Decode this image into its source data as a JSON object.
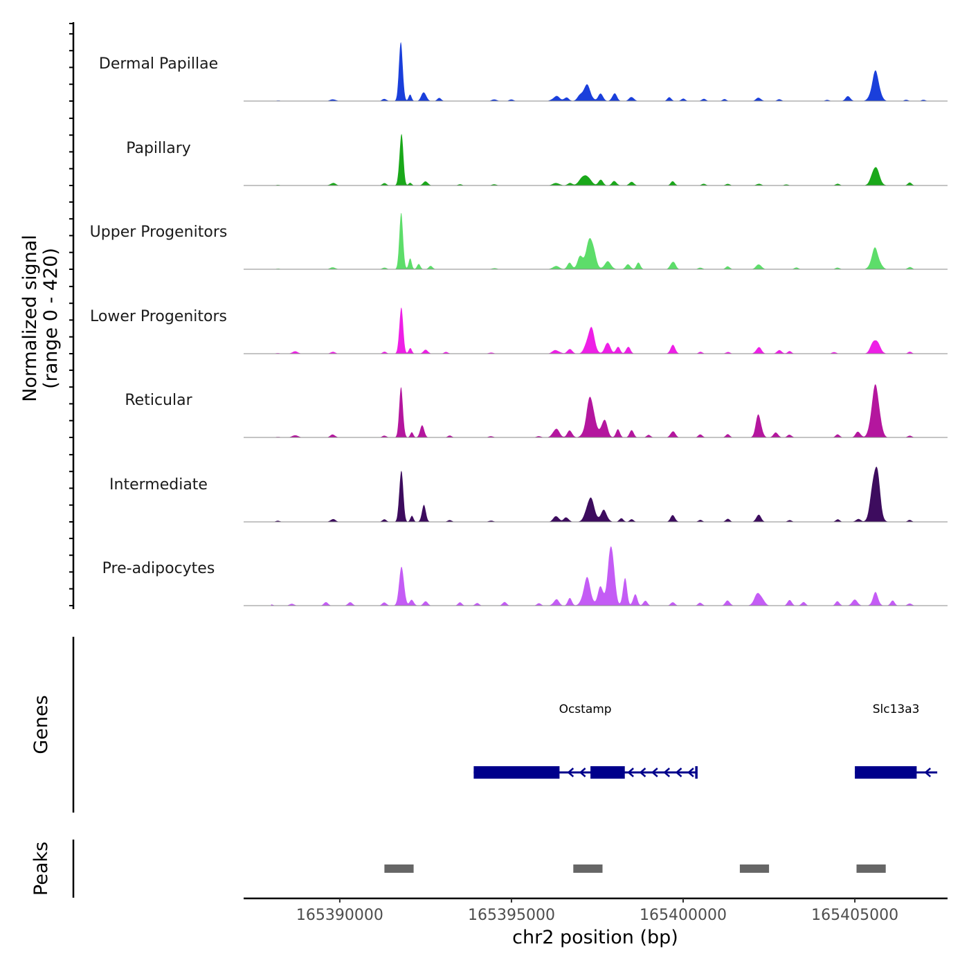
{
  "chart_data": {
    "type": "area",
    "title": "",
    "ylabel_line1": "Normalized signal",
    "ylabel_line2": "(range 0 - 420)",
    "y_range": [
      0,
      420
    ],
    "xlabel": "chr2 position (bp)",
    "xlim": [
      165387200,
      165407700
    ],
    "xticks": [
      165390000,
      165395000,
      165400000,
      165405000
    ],
    "xtick_labels": [
      "165390000",
      "165395000",
      "165400000",
      "165405000"
    ],
    "series": [
      {
        "name": "Dermal Papillae",
        "color": "#1a3fdb",
        "peaks": [
          [
            165388200,
            0.01,
            60
          ],
          [
            165389800,
            0.03,
            80
          ],
          [
            165391300,
            0.04,
            60
          ],
          [
            165391780,
            1.0,
            55
          ],
          [
            165392050,
            0.1,
            45
          ],
          [
            165392450,
            0.15,
            70
          ],
          [
            165392900,
            0.05,
            60
          ],
          [
            165394500,
            0.03,
            70
          ],
          [
            165395000,
            0.03,
            60
          ],
          [
            165396300,
            0.08,
            100
          ],
          [
            165396600,
            0.06,
            70
          ],
          [
            165397000,
            0.08,
            80
          ],
          [
            165397200,
            0.24,
            110
          ],
          [
            165397600,
            0.12,
            70
          ],
          [
            165398000,
            0.12,
            70
          ],
          [
            165398500,
            0.07,
            70
          ],
          [
            165399600,
            0.06,
            60
          ],
          [
            165400000,
            0.04,
            60
          ],
          [
            165400600,
            0.04,
            60
          ],
          [
            165401200,
            0.03,
            60
          ],
          [
            165402200,
            0.06,
            70
          ],
          [
            165402800,
            0.03,
            60
          ],
          [
            165404200,
            0.02,
            60
          ],
          [
            165404800,
            0.08,
            70
          ],
          [
            165405600,
            0.46,
            110
          ],
          [
            165406500,
            0.02,
            60
          ],
          [
            165407000,
            0.02,
            60
          ]
        ]
      },
      {
        "name": "Papillary",
        "color": "#1aa81a",
        "peaks": [
          [
            165388200,
            0.01,
            60
          ],
          [
            165389800,
            0.04,
            80
          ],
          [
            165391300,
            0.04,
            60
          ],
          [
            165391790,
            0.88,
            55
          ],
          [
            165392050,
            0.05,
            45
          ],
          [
            165392500,
            0.07,
            70
          ],
          [
            165393500,
            0.02,
            60
          ],
          [
            165394500,
            0.02,
            70
          ],
          [
            165396300,
            0.04,
            100
          ],
          [
            165396700,
            0.04,
            70
          ],
          [
            165397000,
            0.08,
            80
          ],
          [
            165397200,
            0.16,
            110
          ],
          [
            165397600,
            0.09,
            70
          ],
          [
            165398000,
            0.07,
            70
          ],
          [
            165398500,
            0.06,
            70
          ],
          [
            165399700,
            0.07,
            60
          ],
          [
            165400600,
            0.03,
            60
          ],
          [
            165401300,
            0.03,
            60
          ],
          [
            165402200,
            0.03,
            70
          ],
          [
            165403000,
            0.02,
            60
          ],
          [
            165404500,
            0.03,
            60
          ],
          [
            165405600,
            0.3,
            110
          ],
          [
            165406600,
            0.05,
            60
          ]
        ]
      },
      {
        "name": "Upper Progenitors",
        "color": "#5ddd6a",
        "peaks": [
          [
            165388200,
            0.01,
            60
          ],
          [
            165389800,
            0.03,
            80
          ],
          [
            165391300,
            0.03,
            60
          ],
          [
            165391790,
            0.85,
            55
          ],
          [
            165392050,
            0.18,
            45
          ],
          [
            165392300,
            0.08,
            50
          ],
          [
            165392650,
            0.05,
            60
          ],
          [
            165394500,
            0.02,
            70
          ],
          [
            165396300,
            0.05,
            100
          ],
          [
            165396700,
            0.1,
            70
          ],
          [
            165397000,
            0.2,
            80
          ],
          [
            165397300,
            0.55,
            110
          ],
          [
            165397800,
            0.12,
            100
          ],
          [
            165398400,
            0.08,
            70
          ],
          [
            165398700,
            0.1,
            60
          ],
          [
            165399700,
            0.14,
            70
          ],
          [
            165400500,
            0.03,
            60
          ],
          [
            165401300,
            0.05,
            60
          ],
          [
            165402200,
            0.08,
            80
          ],
          [
            165403300,
            0.03,
            60
          ],
          [
            165404500,
            0.03,
            60
          ],
          [
            165405600,
            0.33,
            110
          ],
          [
            165406600,
            0.04,
            60
          ]
        ]
      },
      {
        "name": "Lower Progenitors",
        "color": "#ee1fe6",
        "peaks": [
          [
            165388200,
            0.01,
            60
          ],
          [
            165388700,
            0.04,
            80
          ],
          [
            165389800,
            0.03,
            70
          ],
          [
            165391300,
            0.03,
            60
          ],
          [
            165391790,
            0.75,
            55
          ],
          [
            165392050,
            0.1,
            45
          ],
          [
            165392500,
            0.06,
            70
          ],
          [
            165393100,
            0.03,
            60
          ],
          [
            165394400,
            0.02,
            70
          ],
          [
            165396300,
            0.06,
            100
          ],
          [
            165396700,
            0.08,
            70
          ],
          [
            165397300,
            0.42,
            110
          ],
          [
            165397800,
            0.18,
            80
          ],
          [
            165398100,
            0.12,
            60
          ],
          [
            165398400,
            0.13,
            60
          ],
          [
            165399700,
            0.14,
            70
          ],
          [
            165400500,
            0.03,
            60
          ],
          [
            165401300,
            0.03,
            60
          ],
          [
            165402200,
            0.1,
            80
          ],
          [
            165402800,
            0.06,
            70
          ],
          [
            165403100,
            0.04,
            60
          ],
          [
            165404400,
            0.03,
            60
          ],
          [
            165405600,
            0.25,
            110
          ],
          [
            165406600,
            0.03,
            60
          ]
        ]
      },
      {
        "name": "Reticular",
        "color": "#b4169e",
        "peaks": [
          [
            165388200,
            0.01,
            60
          ],
          [
            165388700,
            0.04,
            80
          ],
          [
            165389800,
            0.05,
            70
          ],
          [
            165391300,
            0.03,
            60
          ],
          [
            165391790,
            0.8,
            55
          ],
          [
            165392100,
            0.08,
            45
          ],
          [
            165392400,
            0.2,
            60
          ],
          [
            165393200,
            0.03,
            60
          ],
          [
            165394400,
            0.02,
            70
          ],
          [
            165395800,
            0.02,
            70
          ],
          [
            165396300,
            0.15,
            90
          ],
          [
            165396700,
            0.12,
            70
          ],
          [
            165397300,
            0.63,
            120
          ],
          [
            165397700,
            0.28,
            90
          ],
          [
            165398100,
            0.12,
            60
          ],
          [
            165398500,
            0.12,
            60
          ],
          [
            165399000,
            0.04,
            60
          ],
          [
            165399700,
            0.1,
            70
          ],
          [
            165400500,
            0.05,
            60
          ],
          [
            165401300,
            0.05,
            60
          ],
          [
            165402200,
            0.36,
            80
          ],
          [
            165402700,
            0.08,
            70
          ],
          [
            165403100,
            0.05,
            60
          ],
          [
            165404500,
            0.05,
            60
          ],
          [
            165405100,
            0.1,
            70
          ],
          [
            165405600,
            0.88,
            110
          ],
          [
            165406600,
            0.03,
            60
          ]
        ]
      },
      {
        "name": "Intermediate",
        "color": "#3d0c5e",
        "peaks": [
          [
            165388200,
            0.02,
            60
          ],
          [
            165389800,
            0.05,
            70
          ],
          [
            165391300,
            0.04,
            60
          ],
          [
            165391790,
            0.95,
            55
          ],
          [
            165392100,
            0.1,
            45
          ],
          [
            165392450,
            0.25,
            60
          ],
          [
            165393200,
            0.03,
            60
          ],
          [
            165394400,
            0.02,
            70
          ],
          [
            165396300,
            0.1,
            80
          ],
          [
            165396600,
            0.08,
            70
          ],
          [
            165397300,
            0.38,
            120
          ],
          [
            165397700,
            0.18,
            90
          ],
          [
            165398200,
            0.06,
            60
          ],
          [
            165398500,
            0.04,
            60
          ],
          [
            165399700,
            0.1,
            70
          ],
          [
            165400500,
            0.03,
            60
          ],
          [
            165401300,
            0.05,
            60
          ],
          [
            165402200,
            0.12,
            70
          ],
          [
            165403100,
            0.03,
            60
          ],
          [
            165404500,
            0.04,
            60
          ],
          [
            165405100,
            0.05,
            70
          ],
          [
            165405600,
            0.96,
            110
          ],
          [
            165406600,
            0.03,
            60
          ]
        ]
      },
      {
        "name": "Pre-adipocytes",
        "color": "#c45cf5",
        "peaks": [
          [
            165388000,
            0.02,
            60
          ],
          [
            165388600,
            0.03,
            70
          ],
          [
            165389600,
            0.06,
            60
          ],
          [
            165390300,
            0.05,
            70
          ],
          [
            165391300,
            0.06,
            60
          ],
          [
            165391800,
            0.65,
            70
          ],
          [
            165392100,
            0.1,
            60
          ],
          [
            165392500,
            0.08,
            60
          ],
          [
            165393500,
            0.05,
            60
          ],
          [
            165394000,
            0.04,
            60
          ],
          [
            165394800,
            0.06,
            60
          ],
          [
            165395800,
            0.04,
            60
          ],
          [
            165396300,
            0.1,
            80
          ],
          [
            165396700,
            0.12,
            60
          ],
          [
            165397200,
            0.42,
            110
          ],
          [
            165397600,
            0.3,
            80
          ],
          [
            165397900,
            1.0,
            90
          ],
          [
            165398300,
            0.45,
            60
          ],
          [
            165398600,
            0.2,
            60
          ],
          [
            165398900,
            0.08,
            60
          ],
          [
            165399700,
            0.06,
            60
          ],
          [
            165400500,
            0.05,
            60
          ],
          [
            165401300,
            0.08,
            70
          ],
          [
            165402200,
            0.22,
            110
          ],
          [
            165403100,
            0.1,
            60
          ],
          [
            165403500,
            0.06,
            60
          ],
          [
            165404500,
            0.07,
            60
          ],
          [
            165405000,
            0.1,
            80
          ],
          [
            165405600,
            0.2,
            80
          ],
          [
            165406100,
            0.08,
            60
          ],
          [
            165406600,
            0.04,
            60
          ]
        ]
      }
    ],
    "genes": {
      "panel_label": "Genes",
      "items": [
        {
          "name": "Ocstamp",
          "strand": "-",
          "start": 165393900,
          "end": 165400400,
          "exons": [
            [
              165393900,
              165396400
            ],
            [
              165397300,
              165398300
            ],
            [
              165400350,
              165400420
            ]
          ]
        },
        {
          "name": "Slc13a3",
          "strand": "-",
          "start": 165405000,
          "end": 165407400,
          "exons": [
            [
              165405000,
              165406800
            ]
          ]
        }
      ]
    },
    "peaks_track": {
      "panel_label": "Peaks",
      "regions": [
        [
          165391300,
          165392150
        ],
        [
          165396800,
          165397650
        ],
        [
          165401650,
          165402500
        ],
        [
          165405050,
          165405900
        ]
      ]
    }
  }
}
